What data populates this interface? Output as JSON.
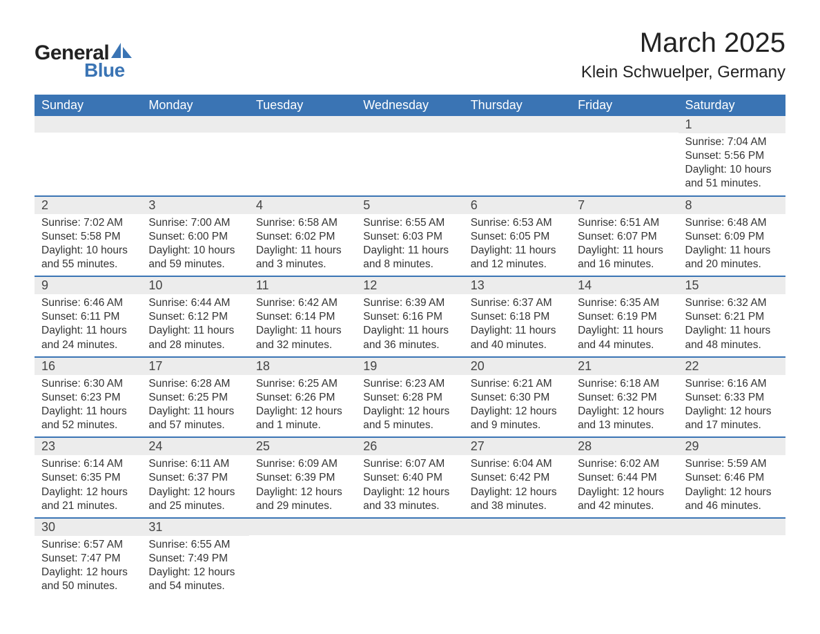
{
  "logo": {
    "text1": "General",
    "text2": "Blue",
    "accent_color": "#3a74b4"
  },
  "title": "March 2025",
  "location": "Klein Schwuelper, Germany",
  "colors": {
    "header_bg": "#3a74b4",
    "header_fg": "#ffffff",
    "daynum_bg": "#ececec",
    "border": "#3a74b4",
    "text": "#333333"
  },
  "typography": {
    "title_fontsize": 40,
    "location_fontsize": 24,
    "header_fontsize": 18,
    "daynum_fontsize": 18,
    "body_fontsize": 15.5
  },
  "weekdays": [
    "Sunday",
    "Monday",
    "Tuesday",
    "Wednesday",
    "Thursday",
    "Friday",
    "Saturday"
  ],
  "weeks": [
    [
      {
        "n": "",
        "sunrise": "",
        "sunset": "",
        "daylight": ""
      },
      {
        "n": "",
        "sunrise": "",
        "sunset": "",
        "daylight": ""
      },
      {
        "n": "",
        "sunrise": "",
        "sunset": "",
        "daylight": ""
      },
      {
        "n": "",
        "sunrise": "",
        "sunset": "",
        "daylight": ""
      },
      {
        "n": "",
        "sunrise": "",
        "sunset": "",
        "daylight": ""
      },
      {
        "n": "",
        "sunrise": "",
        "sunset": "",
        "daylight": ""
      },
      {
        "n": "1",
        "sunrise": "Sunrise: 7:04 AM",
        "sunset": "Sunset: 5:56 PM",
        "daylight": "Daylight: 10 hours and 51 minutes."
      }
    ],
    [
      {
        "n": "2",
        "sunrise": "Sunrise: 7:02 AM",
        "sunset": "Sunset: 5:58 PM",
        "daylight": "Daylight: 10 hours and 55 minutes."
      },
      {
        "n": "3",
        "sunrise": "Sunrise: 7:00 AM",
        "sunset": "Sunset: 6:00 PM",
        "daylight": "Daylight: 10 hours and 59 minutes."
      },
      {
        "n": "4",
        "sunrise": "Sunrise: 6:58 AM",
        "sunset": "Sunset: 6:02 PM",
        "daylight": "Daylight: 11 hours and 3 minutes."
      },
      {
        "n": "5",
        "sunrise": "Sunrise: 6:55 AM",
        "sunset": "Sunset: 6:03 PM",
        "daylight": "Daylight: 11 hours and 8 minutes."
      },
      {
        "n": "6",
        "sunrise": "Sunrise: 6:53 AM",
        "sunset": "Sunset: 6:05 PM",
        "daylight": "Daylight: 11 hours and 12 minutes."
      },
      {
        "n": "7",
        "sunrise": "Sunrise: 6:51 AM",
        "sunset": "Sunset: 6:07 PM",
        "daylight": "Daylight: 11 hours and 16 minutes."
      },
      {
        "n": "8",
        "sunrise": "Sunrise: 6:48 AM",
        "sunset": "Sunset: 6:09 PM",
        "daylight": "Daylight: 11 hours and 20 minutes."
      }
    ],
    [
      {
        "n": "9",
        "sunrise": "Sunrise: 6:46 AM",
        "sunset": "Sunset: 6:11 PM",
        "daylight": "Daylight: 11 hours and 24 minutes."
      },
      {
        "n": "10",
        "sunrise": "Sunrise: 6:44 AM",
        "sunset": "Sunset: 6:12 PM",
        "daylight": "Daylight: 11 hours and 28 minutes."
      },
      {
        "n": "11",
        "sunrise": "Sunrise: 6:42 AM",
        "sunset": "Sunset: 6:14 PM",
        "daylight": "Daylight: 11 hours and 32 minutes."
      },
      {
        "n": "12",
        "sunrise": "Sunrise: 6:39 AM",
        "sunset": "Sunset: 6:16 PM",
        "daylight": "Daylight: 11 hours and 36 minutes."
      },
      {
        "n": "13",
        "sunrise": "Sunrise: 6:37 AM",
        "sunset": "Sunset: 6:18 PM",
        "daylight": "Daylight: 11 hours and 40 minutes."
      },
      {
        "n": "14",
        "sunrise": "Sunrise: 6:35 AM",
        "sunset": "Sunset: 6:19 PM",
        "daylight": "Daylight: 11 hours and 44 minutes."
      },
      {
        "n": "15",
        "sunrise": "Sunrise: 6:32 AM",
        "sunset": "Sunset: 6:21 PM",
        "daylight": "Daylight: 11 hours and 48 minutes."
      }
    ],
    [
      {
        "n": "16",
        "sunrise": "Sunrise: 6:30 AM",
        "sunset": "Sunset: 6:23 PM",
        "daylight": "Daylight: 11 hours and 52 minutes."
      },
      {
        "n": "17",
        "sunrise": "Sunrise: 6:28 AM",
        "sunset": "Sunset: 6:25 PM",
        "daylight": "Daylight: 11 hours and 57 minutes."
      },
      {
        "n": "18",
        "sunrise": "Sunrise: 6:25 AM",
        "sunset": "Sunset: 6:26 PM",
        "daylight": "Daylight: 12 hours and 1 minute."
      },
      {
        "n": "19",
        "sunrise": "Sunrise: 6:23 AM",
        "sunset": "Sunset: 6:28 PM",
        "daylight": "Daylight: 12 hours and 5 minutes."
      },
      {
        "n": "20",
        "sunrise": "Sunrise: 6:21 AM",
        "sunset": "Sunset: 6:30 PM",
        "daylight": "Daylight: 12 hours and 9 minutes."
      },
      {
        "n": "21",
        "sunrise": "Sunrise: 6:18 AM",
        "sunset": "Sunset: 6:32 PM",
        "daylight": "Daylight: 12 hours and 13 minutes."
      },
      {
        "n": "22",
        "sunrise": "Sunrise: 6:16 AM",
        "sunset": "Sunset: 6:33 PM",
        "daylight": "Daylight: 12 hours and 17 minutes."
      }
    ],
    [
      {
        "n": "23",
        "sunrise": "Sunrise: 6:14 AM",
        "sunset": "Sunset: 6:35 PM",
        "daylight": "Daylight: 12 hours and 21 minutes."
      },
      {
        "n": "24",
        "sunrise": "Sunrise: 6:11 AM",
        "sunset": "Sunset: 6:37 PM",
        "daylight": "Daylight: 12 hours and 25 minutes."
      },
      {
        "n": "25",
        "sunrise": "Sunrise: 6:09 AM",
        "sunset": "Sunset: 6:39 PM",
        "daylight": "Daylight: 12 hours and 29 minutes."
      },
      {
        "n": "26",
        "sunrise": "Sunrise: 6:07 AM",
        "sunset": "Sunset: 6:40 PM",
        "daylight": "Daylight: 12 hours and 33 minutes."
      },
      {
        "n": "27",
        "sunrise": "Sunrise: 6:04 AM",
        "sunset": "Sunset: 6:42 PM",
        "daylight": "Daylight: 12 hours and 38 minutes."
      },
      {
        "n": "28",
        "sunrise": "Sunrise: 6:02 AM",
        "sunset": "Sunset: 6:44 PM",
        "daylight": "Daylight: 12 hours and 42 minutes."
      },
      {
        "n": "29",
        "sunrise": "Sunrise: 5:59 AM",
        "sunset": "Sunset: 6:46 PM",
        "daylight": "Daylight: 12 hours and 46 minutes."
      }
    ],
    [
      {
        "n": "30",
        "sunrise": "Sunrise: 6:57 AM",
        "sunset": "Sunset: 7:47 PM",
        "daylight": "Daylight: 12 hours and 50 minutes."
      },
      {
        "n": "31",
        "sunrise": "Sunrise: 6:55 AM",
        "sunset": "Sunset: 7:49 PM",
        "daylight": "Daylight: 12 hours and 54 minutes."
      },
      {
        "n": "",
        "sunrise": "",
        "sunset": "",
        "daylight": ""
      },
      {
        "n": "",
        "sunrise": "",
        "sunset": "",
        "daylight": ""
      },
      {
        "n": "",
        "sunrise": "",
        "sunset": "",
        "daylight": ""
      },
      {
        "n": "",
        "sunrise": "",
        "sunset": "",
        "daylight": ""
      },
      {
        "n": "",
        "sunrise": "",
        "sunset": "",
        "daylight": ""
      }
    ]
  ]
}
